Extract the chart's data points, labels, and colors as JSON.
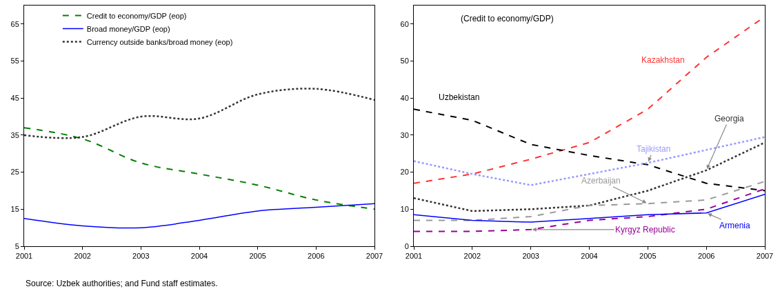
{
  "chart_data": [
    {
      "type": "line",
      "x": [
        2001,
        2002,
        2003,
        2004,
        2005,
        2006,
        2007
      ],
      "xlim": [
        2001,
        2007
      ],
      "xticks": [
        2001,
        2002,
        2003,
        2004,
        2005,
        2006,
        2007
      ],
      "ylim": [
        5,
        70
      ],
      "yticks": [
        5,
        15,
        25,
        35,
        45,
        55,
        65
      ],
      "grid": false,
      "legend": "top left",
      "annotations": [
        "Source: Uzbek authorities; and Fund staff estimates."
      ],
      "series": [
        {
          "name": "Credit to economy/GDP (eop)",
          "color": "#008000",
          "line_style": "dashed",
          "values": [
            37,
            34,
            27.5,
            24.5,
            21.5,
            17.5,
            15
          ]
        },
        {
          "name": "Broad money/GDP (eop)",
          "color": "#0000ff",
          "line_style": "solid",
          "values": [
            12.5,
            10.5,
            10,
            12,
            14.5,
            15.5,
            16.5
          ]
        },
        {
          "name": "Currency outside banks/broad money (eop)",
          "color": "#333333",
          "line_style": "dotted",
          "values": [
            35,
            34.5,
            40,
            39.5,
            46,
            47.5,
            44.5
          ]
        }
      ]
    },
    {
      "type": "line",
      "title": "(Credit to economy/GDP)",
      "x": [
        2001,
        2002,
        2003,
        2004,
        2005,
        2006,
        2007
      ],
      "xlim": [
        2001,
        2007
      ],
      "xticks": [
        2001,
        2002,
        2003,
        2004,
        2005,
        2006,
        2007
      ],
      "ylim": [
        0,
        65
      ],
      "yticks": [
        0,
        10,
        20,
        30,
        40,
        50,
        60
      ],
      "grid": false,
      "legend": false,
      "series": [
        {
          "name": "Kazakhstan",
          "color": "#ff3333",
          "line_style": "dashed",
          "values": [
            17,
            19.5,
            23.5,
            28,
            37,
            51,
            62
          ]
        },
        {
          "name": "Uzbekistan",
          "color": "#000000",
          "line_style": "dashed",
          "values": [
            37,
            34,
            27.5,
            24.5,
            22,
            17,
            15
          ]
        },
        {
          "name": "Tajikistan",
          "color": "#9999ff",
          "line_style": "dotted",
          "values": [
            23,
            19.5,
            16.5,
            19.5,
            22.5,
            26,
            29.5
          ]
        },
        {
          "name": "Georgia",
          "color": "#333333",
          "line_style": "dotted",
          "values": [
            13,
            9.5,
            10,
            11,
            15,
            20.5,
            28
          ]
        },
        {
          "name": "Azerbaijan",
          "color": "#999999",
          "line_style": "dashed",
          "values": [
            7,
            7,
            8,
            11,
            11.5,
            12.5,
            17.5
          ]
        },
        {
          "name": "Kyrgyz Republic",
          "color": "#990099",
          "line_style": "dashed",
          "values": [
            4,
            4,
            4.5,
            7,
            8,
            10,
            15.5
          ]
        },
        {
          "name": "Armenia",
          "color": "#0000ff",
          "line_style": "solid",
          "values": [
            8.5,
            7,
            6.5,
            7.5,
            8.5,
            9,
            14
          ]
        }
      ]
    }
  ]
}
